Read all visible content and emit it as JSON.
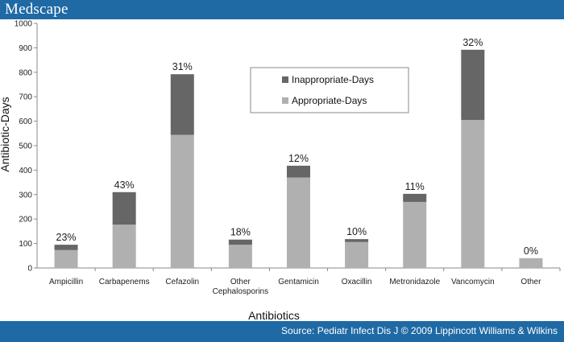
{
  "header": {
    "logo_text": "Medscape"
  },
  "footer": {
    "source_text": "Source: Pediatr Infect Dis J © 2009 Lippincott Williams & Wilkins"
  },
  "colors": {
    "inappropriate": "#666666",
    "appropriate": "#b0b0b0",
    "banner": "#1f6aa5"
  },
  "chart_data": {
    "type": "bar",
    "stacked": true,
    "categories": [
      "Ampicillin",
      "Carbapenems",
      "Cefazolin",
      "Other Cephalosporins",
      "Gentamicin",
      "Oxacillin",
      "Metronidazole",
      "Vancomycin",
      "Other"
    ],
    "category_lines": [
      [
        "Ampicillin"
      ],
      [
        "Carbapenems"
      ],
      [
        "Cefazolin"
      ],
      [
        "Other",
        "Cephalosporins"
      ],
      [
        "Gentamicin"
      ],
      [
        "Oxacillin"
      ],
      [
        "Metronidazole"
      ],
      [
        "Vancomycin"
      ],
      [
        "Other"
      ]
    ],
    "series": [
      {
        "name": "Appropriate-Days",
        "values": [
          73,
          177,
          544,
          95,
          370,
          106,
          270,
          605,
          40
        ]
      },
      {
        "name": "Inappropriate-Days",
        "values": [
          22,
          133,
          248,
          21,
          48,
          12,
          33,
          287,
          0
        ]
      }
    ],
    "data_labels": [
      "23%",
      "43%",
      "31%",
      "18%",
      "12%",
      "10%",
      "11%",
      "32%",
      "0%"
    ],
    "xlabel": "Antibiotics",
    "ylabel": "Antibiotic-Days",
    "ylim": [
      0,
      1000
    ],
    "yticks": [
      0,
      100,
      200,
      300,
      400,
      500,
      600,
      700,
      800,
      900,
      1000
    ],
    "grid": false,
    "legend": {
      "position": "top-center",
      "entries": [
        "Inappropriate-Days",
        "Appropriate-Days"
      ]
    }
  }
}
